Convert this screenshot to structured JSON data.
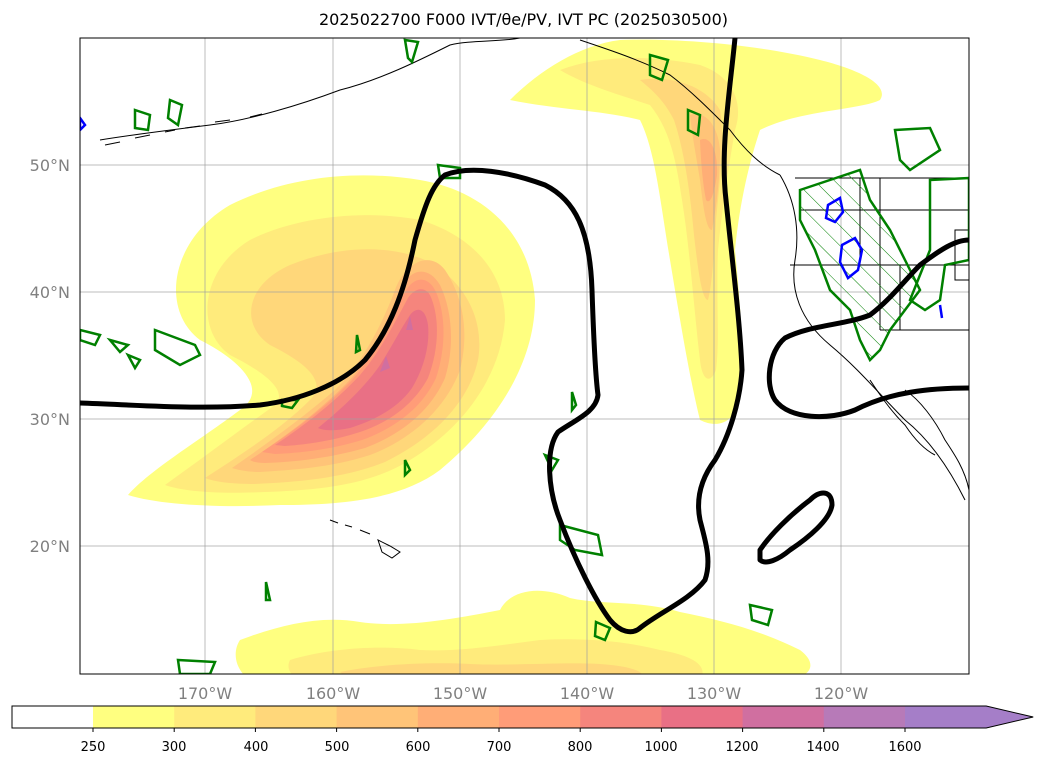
{
  "title": "2025022700 F000 IVT/θe/PV, IVT PC (2025030500)",
  "lon_labels": [
    "170°W",
    "160°W",
    "150°W",
    "140°W",
    "130°W",
    "120°W"
  ],
  "lat_labels": [
    "50°N",
    "40°N",
    "30°N",
    "20°N"
  ],
  "colorbar": {
    "levels": [
      "250",
      "300",
      "400",
      "500",
      "600",
      "700",
      "800",
      "1000",
      "1200",
      "1400",
      "1600"
    ],
    "colors": [
      "#ffff80",
      "#ffeb7c",
      "#ffd77a",
      "#ffc478",
      "#ffae76",
      "#ff9c78",
      "#f5857d",
      "#e97085",
      "#d06fa0",
      "#b77ab8",
      "#a57ec8"
    ],
    "extend": "max"
  },
  "colors": {
    "theta_e_contour": "#008000",
    "pv_contour": "#0000ff",
    "ivt_pc_contour": "#000000"
  }
}
